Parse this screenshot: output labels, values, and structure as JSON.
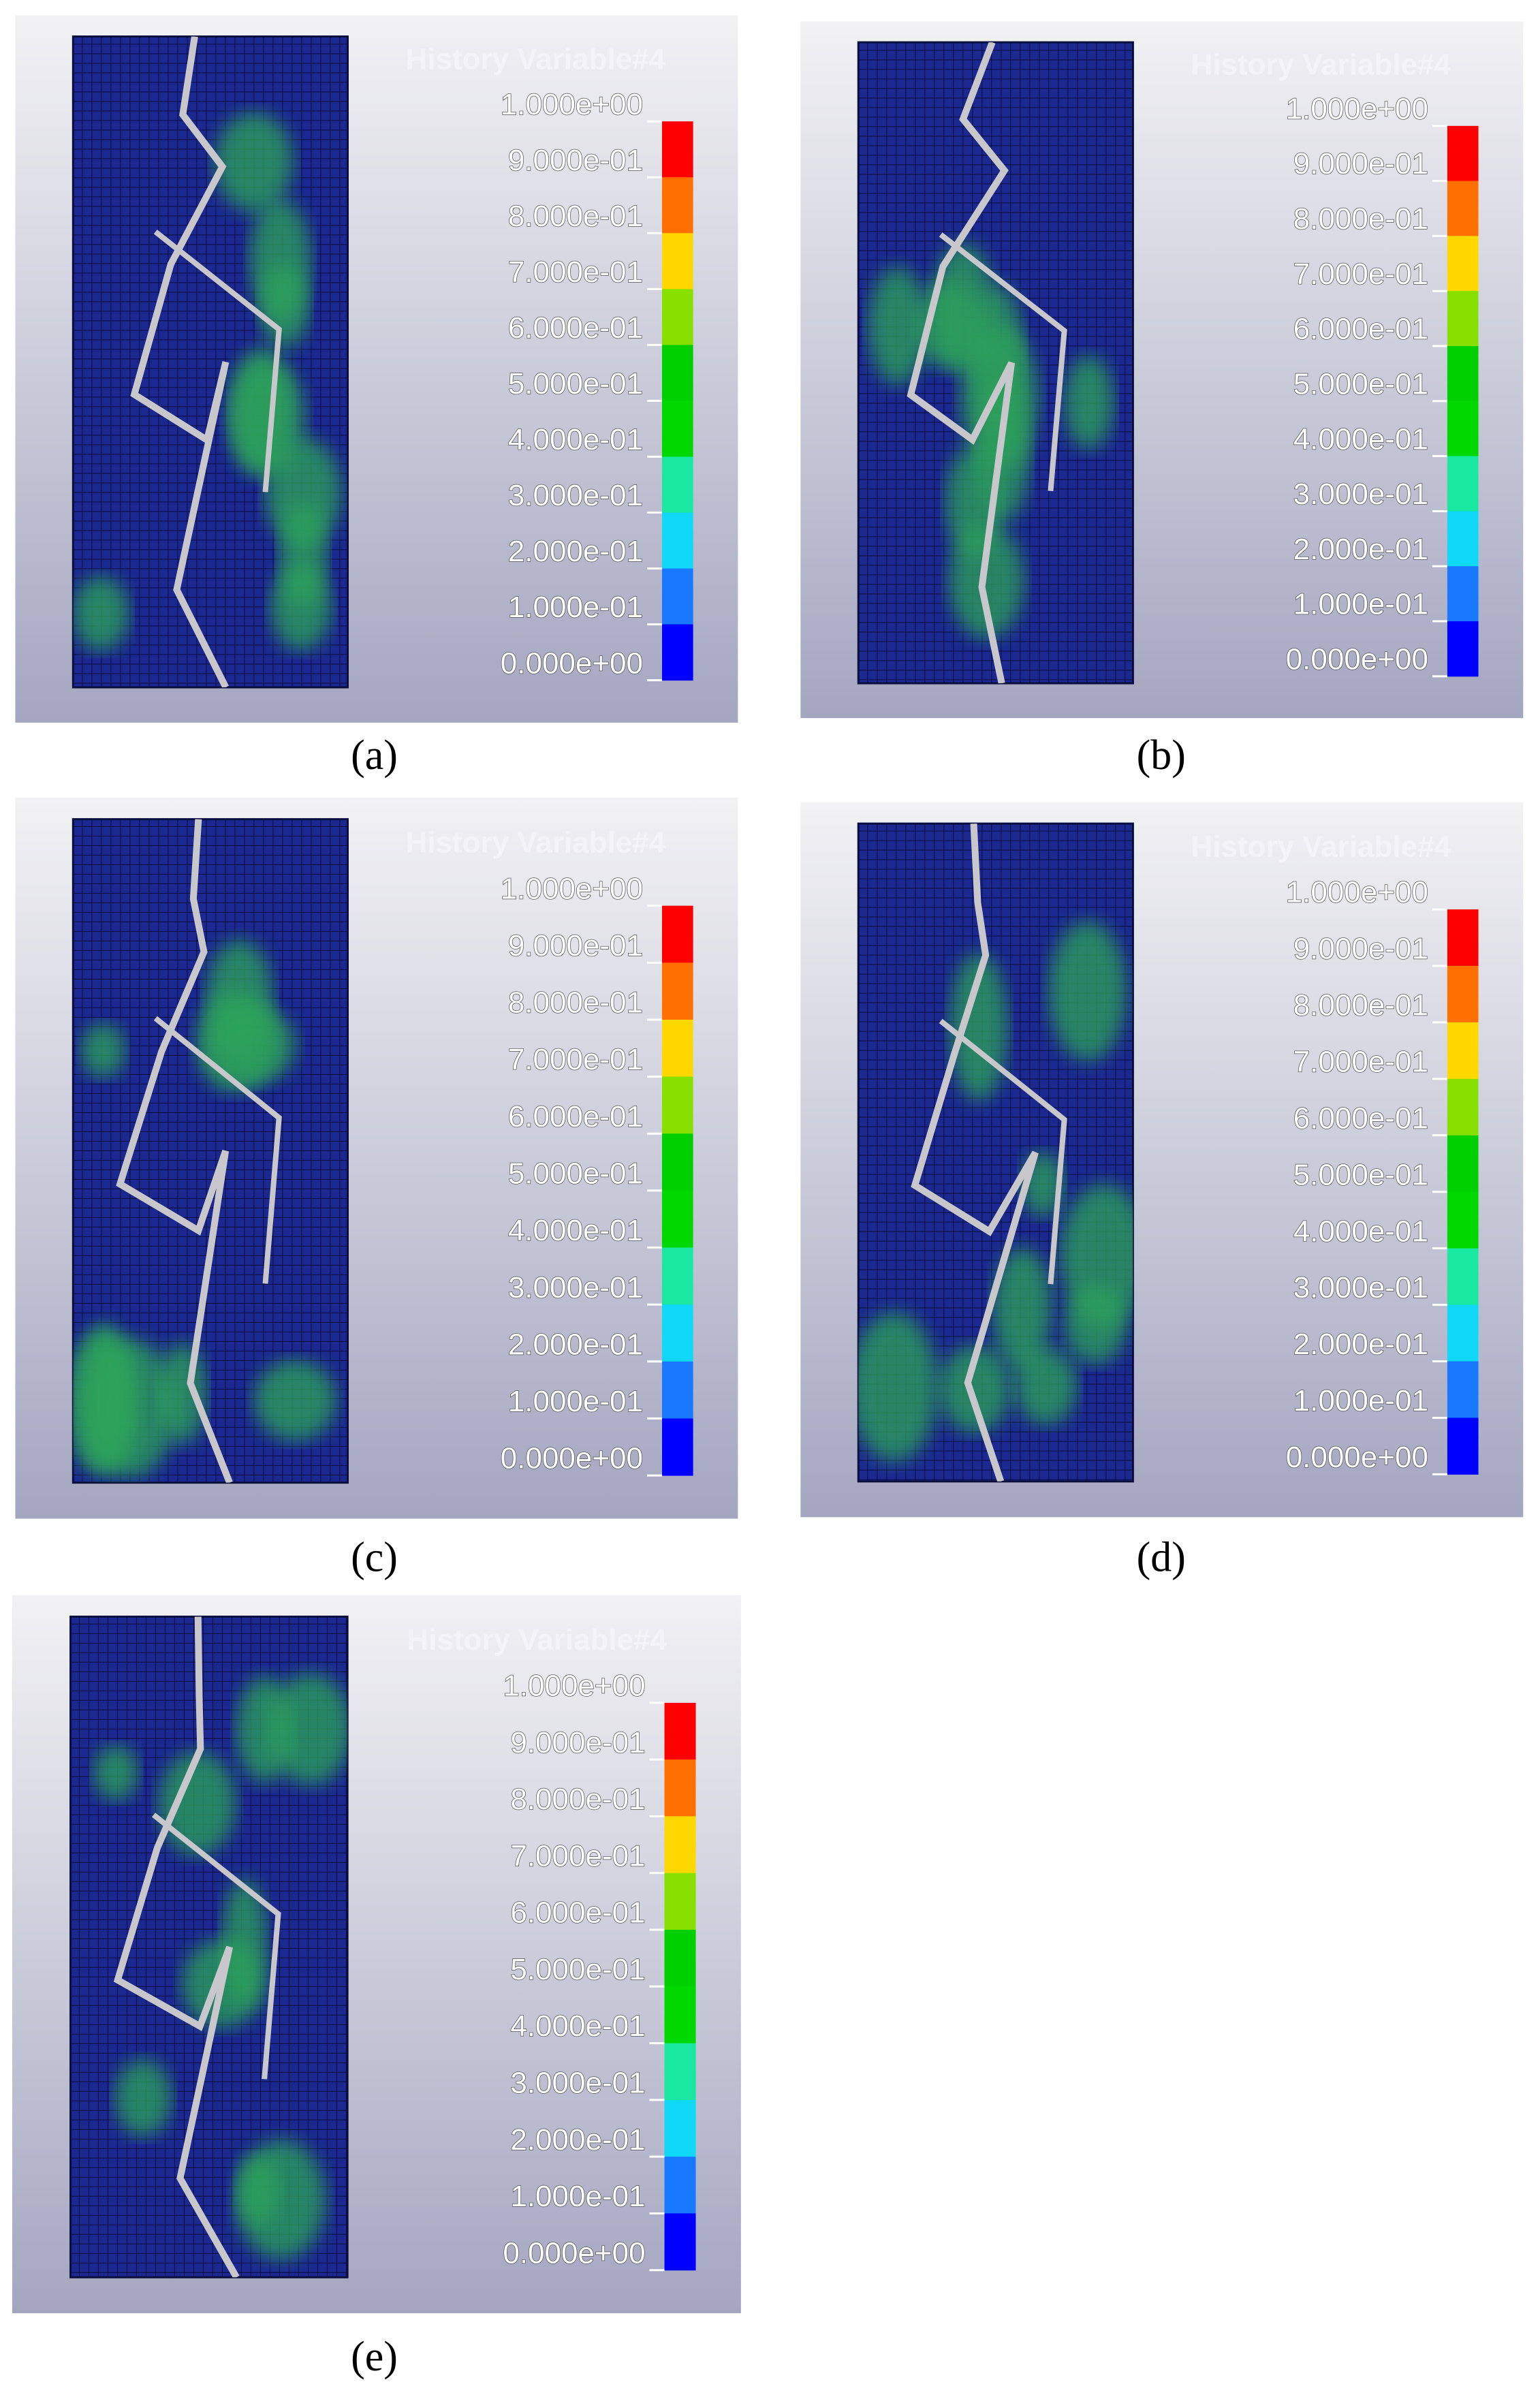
{
  "colorbar": {
    "title": "History Variable#4",
    "labels": [
      "1.000e+00",
      "9.000e-01",
      "8.000e-01",
      "7.000e-01",
      "6.000e-01",
      "5.000e-01",
      "4.000e-01",
      "3.000e-01",
      "2.000e-01",
      "1.000e-01",
      "0.000e+00"
    ],
    "colors": [
      "#ff0000",
      "#ff7000",
      "#ffd800",
      "#88e000",
      "#00d000",
      "#00d800",
      "#18e8a0",
      "#10d8f8",
      "#1878ff",
      "#0000ff"
    ]
  },
  "panels": [
    {
      "label": "(a)"
    },
    {
      "label": "(b)"
    },
    {
      "label": "(c)"
    },
    {
      "label": "(d)"
    },
    {
      "label": "(e)"
    }
  ]
}
